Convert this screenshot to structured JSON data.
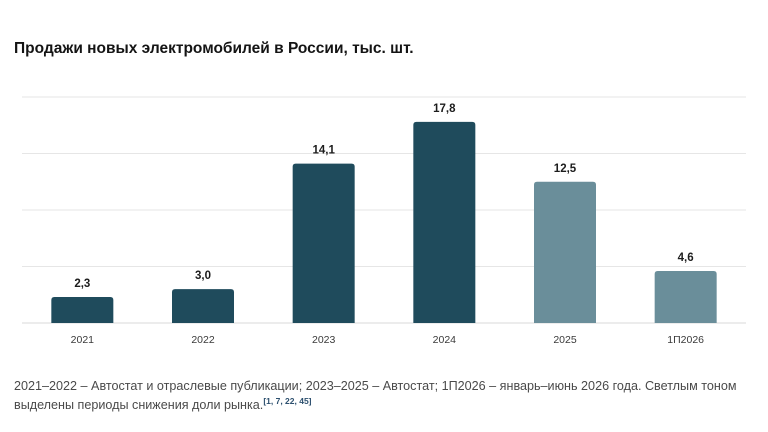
{
  "header": {
    "title": "Продажи новых электромобилей в России, тыс. шт."
  },
  "chart_data": {
    "type": "bar",
    "title": "Продажи новых электромобилей в России, тыс. шт.",
    "categories": [
      "2021",
      "2022",
      "2023",
      "2024",
      "2025",
      "1П2026"
    ],
    "values": [
      2.3,
      3.0,
      14.1,
      17.8,
      12.5,
      4.6
    ],
    "value_labels": [
      "2,3",
      "3,0",
      "14,1",
      "17,8",
      "12,5",
      "4,6"
    ],
    "highlight": [
      "dark",
      "dark",
      "dark",
      "dark",
      "light",
      "light"
    ],
    "colors": {
      "dark": "#1f4b5c",
      "light": "#6a8e9a",
      "grid": "#e6e6e6"
    },
    "ylim": [
      0,
      20
    ],
    "grid": true,
    "xlabel": "",
    "ylabel": ""
  },
  "footnote": {
    "text": "2021–2022 – Автостат и отраслевые публикации; 2023–2025 – Автостат; 1П2026 – январь–июнь 2026 года. Светлым тоном выделены периоды снижения доли рынка.",
    "refs": "[1, 7, 22, 45]"
  }
}
